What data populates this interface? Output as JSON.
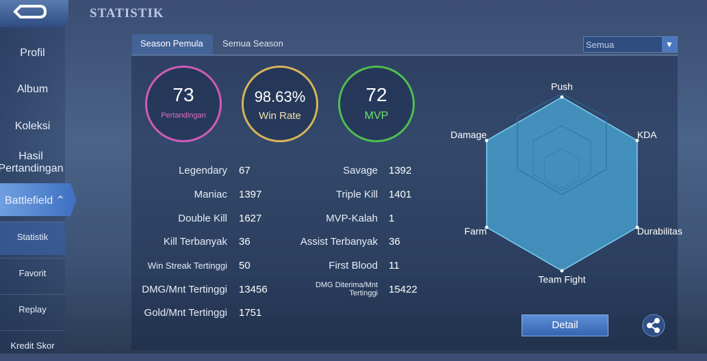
{
  "header": {
    "title": "STATISTIK"
  },
  "sidebar": [
    "Profil",
    "Album",
    "Koleksi",
    "Hasil Pertandingan",
    "Battlefield",
    "Statistik",
    "Favorit",
    "Replay",
    "Kredit Skor"
  ],
  "tabs": [
    "Season Pemula",
    "Semua Season"
  ],
  "dropdown": "Semua",
  "summary": [
    {
      "value": "73",
      "label": "Pertandingan"
    },
    {
      "value": "98.63%",
      "label": "Win Rate"
    },
    {
      "value": "72",
      "label": "MVP"
    }
  ],
  "stats_left": [
    [
      "Legendary",
      "67"
    ],
    [
      "Maniac",
      "1397"
    ],
    [
      "Double Kill",
      "1627"
    ],
    [
      "Kill Terbanyak",
      "36"
    ],
    [
      "Win Streak Tertinggi",
      "50"
    ],
    [
      "DMG/Mnt Tertinggi",
      "13456"
    ],
    [
      "Gold/Mnt Tertinggi",
      "1751"
    ]
  ],
  "stats_right": [
    [
      "Savage",
      "1392"
    ],
    [
      "Triple Kill",
      "1401"
    ],
    [
      "MVP-Kalah",
      "1"
    ],
    [
      "Assist Terbanyak",
      "36"
    ],
    [
      "First Blood",
      "11"
    ],
    [
      "DMG Diterima/Mnt Tertinggi",
      "15422"
    ]
  ],
  "radar": {
    "type": "radar",
    "axes": [
      "Push",
      "KDA",
      "Durabilitas",
      "Team Fight",
      "Farm",
      "Damage"
    ],
    "values": [
      100,
      100,
      100,
      100,
      100,
      100
    ],
    "rlim": [
      0,
      100
    ],
    "color": "#4aa8d8"
  },
  "button": "Detail"
}
